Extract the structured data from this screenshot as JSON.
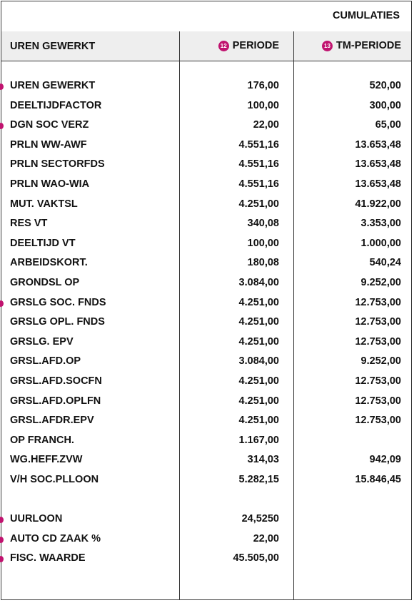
{
  "header": {
    "title": "CUMULATIES",
    "col_label": "UREN GEWERKT",
    "col_periode_badge": "12",
    "col_periode": "PERIODE",
    "col_tm_badge": "13",
    "col_tm": "TM-PERIODE"
  },
  "rows": [
    {
      "label": "UREN GEWERKT",
      "periode": "176,00",
      "tm": "520,00",
      "marked": true
    },
    {
      "label": "DEELTIJDFACTOR",
      "periode": "100,00",
      "tm": "300,00",
      "marked": false
    },
    {
      "label": "DGN SOC VERZ",
      "periode": "22,00",
      "tm": "65,00",
      "marked": true
    },
    {
      "label": "PRLN WW-AWF",
      "periode": "4.551,16",
      "tm": "13.653,48",
      "marked": false
    },
    {
      "label": "PRLN SECTORFDS",
      "periode": "4.551,16",
      "tm": "13.653,48",
      "marked": false
    },
    {
      "label": "PRLN WAO-WIA",
      "periode": "4.551,16",
      "tm": "13.653,48",
      "marked": false
    },
    {
      "label": "MUT. VAKTSL",
      "periode": "4.251,00",
      "tm": "41.922,00",
      "marked": false
    },
    {
      "label": "RES VT",
      "periode": "340,08",
      "tm": "3.353,00",
      "marked": false
    },
    {
      "label": "DEELTIJD VT",
      "periode": "100,00",
      "tm": "1.000,00",
      "marked": false
    },
    {
      "label": "ARBEIDSKORT.",
      "periode": "180,08",
      "tm": "540,24",
      "marked": false
    },
    {
      "label": "GRONDSL OP",
      "periode": "3.084,00",
      "tm": "9.252,00",
      "marked": false
    },
    {
      "label": "GRSLG SOC. FNDS",
      "periode": "4.251,00",
      "tm": "12.753,00",
      "marked": true
    },
    {
      "label": "GRSLG OPL. FNDS",
      "periode": "4.251,00",
      "tm": "12.753,00",
      "marked": false
    },
    {
      "label": "GRSLG. EPV",
      "periode": "4.251,00",
      "tm": "12.753,00",
      "marked": false
    },
    {
      "label": "GRSL.AFD.OP",
      "periode": "3.084,00",
      "tm": "9.252,00",
      "marked": false
    },
    {
      "label": "GRSL.AFD.SOCFN",
      "periode": "4.251,00",
      "tm": "12.753,00",
      "marked": false
    },
    {
      "label": "GRSL.AFD.OPLFN",
      "periode": "4.251,00",
      "tm": "12.753,00",
      "marked": false
    },
    {
      "label": "GRSL.AFDR.EPV",
      "periode": "4.251,00",
      "tm": "12.753,00",
      "marked": false
    },
    {
      "label": "OP FRANCH.",
      "periode": "1.167,00",
      "tm": "",
      "marked": false
    },
    {
      "label": "WG.HEFF.ZVW",
      "periode": "314,03",
      "tm": "942,09",
      "marked": false
    },
    {
      "label": "V/H SOC.PLLOON",
      "periode": "5.282,15",
      "tm": "15.846,45",
      "marked": false
    }
  ],
  "extra_rows": [
    {
      "label": "UURLOON",
      "periode": "24,5250",
      "tm": "",
      "marked": true
    },
    {
      "label": "AUTO CD ZAAK %",
      "periode": "22,00",
      "tm": "",
      "marked": true
    },
    {
      "label": "FISC. WAARDE",
      "periode": "45.505,00",
      "tm": "",
      "marked": true
    }
  ],
  "colors": {
    "accent": "#c0136f",
    "header_bg": "#eeeeee",
    "border": "#3a3a3a"
  }
}
